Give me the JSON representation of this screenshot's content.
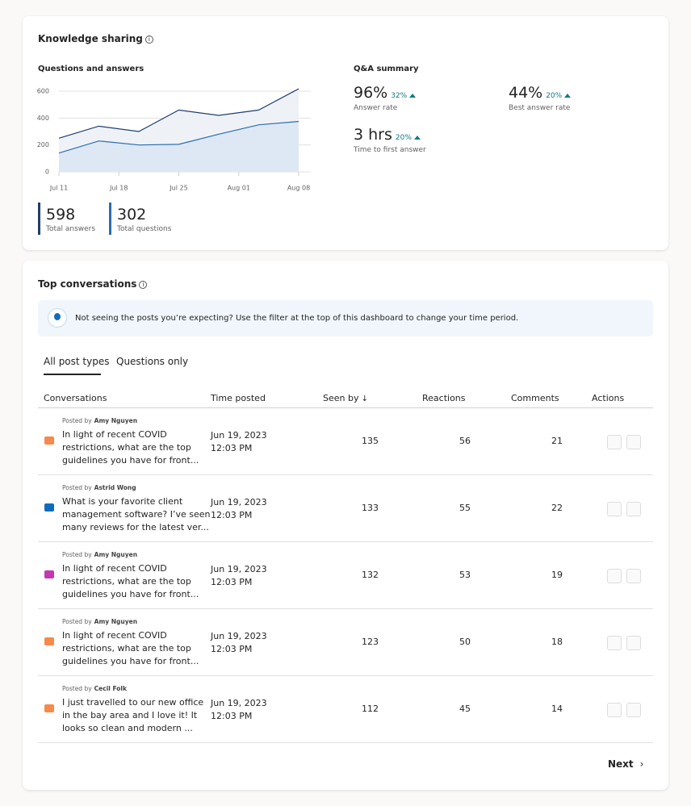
{
  "knowledge": {
    "title": "Knowledge sharing",
    "chart": {
      "type": "line",
      "title": "Questions and answers",
      "x": [
        0,
        1,
        2,
        3,
        4,
        5,
        6
      ],
      "xlim": [
        0,
        6
      ],
      "xticks": [
        {
          "value": 0,
          "label": "Jul 11"
        },
        {
          "value": 1.5,
          "label": "Jul 18"
        },
        {
          "value": 3,
          "label": "Jul 25"
        },
        {
          "value": 4.5,
          "label": "Aug 01"
        },
        {
          "value": 6,
          "label": "Aug 08"
        }
      ],
      "ylim": [
        0,
        620
      ],
      "yticks": [
        0,
        200,
        400,
        600
      ],
      "grid": true,
      "series": [
        {
          "name": "Total answers",
          "total": 598,
          "color": "#1f3f6e",
          "fill": "#eef2f7",
          "values": [
            250,
            340,
            300,
            460,
            420,
            460,
            618
          ]
        },
        {
          "name": "Total questions",
          "total": 302,
          "color": "#2b6cb0",
          "fill": "#dde8f4",
          "values": [
            140,
            230,
            200,
            205,
            280,
            350,
            375
          ]
        }
      ]
    },
    "summary": {
      "title": "Q&A summary",
      "metrics": [
        {
          "value": "96%",
          "change": "32%",
          "label": "Answer rate"
        },
        {
          "value": "44%",
          "change": "20%",
          "label": "Best answer rate"
        },
        {
          "value": "3 hrs",
          "change": "20%",
          "label": "Time to first answer"
        }
      ]
    }
  },
  "conversations": {
    "title": "Top conversations",
    "notice": "Not seeing the posts you’re expecting? Use the filter at the top of this dashboard to change your time period.",
    "tabs": [
      "All post types",
      "Questions only"
    ],
    "columns": [
      "Conversations",
      "Time posted",
      "Seen by",
      "Reactions",
      "Comments",
      "Actions"
    ],
    "posted_by_label": "Posted by",
    "rows": [
      {
        "author": "Amy Nguyen",
        "text": [
          "In light of recent COVID",
          "restrictions, what are the top",
          "guidelines you have for front..."
        ],
        "date": "Jun 19, 2023",
        "time": "12:03 PM",
        "seen": 135,
        "reactions": 56,
        "comments": 21
      },
      {
        "author": "Astrid Wong",
        "text": [
          "What is your favorite client",
          "management software? I’ve seen",
          "many reviews for the latest ver..."
        ],
        "date": "Jun 19, 2023",
        "time": "12:03 PM",
        "seen": 133,
        "reactions": 55,
        "comments": 22
      },
      {
        "author": "Amy Nguyen",
        "text": [
          "In light of recent COVID",
          "restrictions, what are the top",
          "guidelines you have for front..."
        ],
        "date": "Jun 19, 2023",
        "time": "12:03 PM",
        "seen": 132,
        "reactions": 53,
        "comments": 19
      },
      {
        "author": "Amy Nguyen",
        "text": [
          "In light of recent COVID",
          "restrictions, what are the top",
          "guidelines you have for front..."
        ],
        "date": "Jun 19, 2023",
        "time": "12:03 PM",
        "seen": 123,
        "reactions": 50,
        "comments": 18
      },
      {
        "author": "Cecil Folk",
        "text": [
          "I just travelled to our new office",
          "in the bay area and I love it! It",
          "looks so clean and modern ..."
        ],
        "date": "Jun 19, 2023",
        "time": "12:03 PM",
        "seen": 112,
        "reactions": 45,
        "comments": 14
      }
    ],
    "next": "Next"
  }
}
